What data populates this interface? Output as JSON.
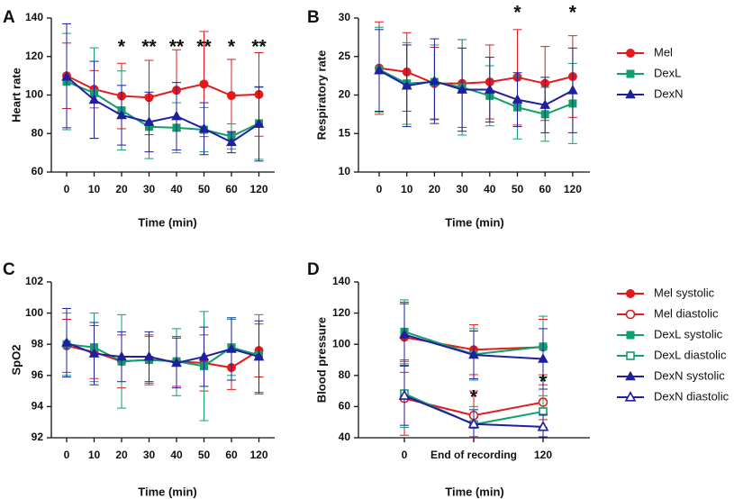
{
  "colors": {
    "Mel": "#e31a1c",
    "DexL": "#109e6b",
    "DexN": "#1f1fa0"
  },
  "legends": {
    "top": [
      "Mel",
      "DexL",
      "DexN"
    ],
    "bottom": [
      "Mel systolic",
      "Mel diastolic",
      "DexL systolic",
      "DexL diastolic",
      "DexN systolic",
      "DexN diastolic"
    ]
  },
  "chart_data": [
    {
      "panel": "A",
      "type": "line",
      "xlabel": "Time (min)",
      "ylabel": "Heart rate",
      "categories": [
        "0",
        "10",
        "20",
        "30",
        "40",
        "50",
        "60",
        "120"
      ],
      "ylim": [
        60,
        140
      ],
      "yticks": [
        60,
        80,
        100,
        120,
        140
      ],
      "series": [
        {
          "name": "Mel",
          "marker": "circle",
          "values": [
            110,
            103,
            99.5,
            98.7,
            102.5,
            105.7,
            99.7,
            100.3
          ],
          "upper": [
            127,
            112.7,
            116.5,
            118,
            123.5,
            133,
            118.5,
            122
          ],
          "lower": [
            93,
            93.3,
            82.5,
            79.4,
            81.5,
            78.4,
            80.9,
            78.6
          ]
        },
        {
          "name": "DexL",
          "marker": "square",
          "values": [
            107,
            101,
            92,
            83.5,
            83,
            82,
            78.5,
            85.3
          ],
          "upper": [
            132,
            124.5,
            112.5,
            100,
            96,
            93.5,
            85,
            104
          ],
          "lower": [
            82,
            77.5,
            71.5,
            67,
            70,
            70.5,
            72,
            66.6
          ]
        },
        {
          "name": "DexN",
          "marker": "triangle",
          "values": [
            109.5,
            97.5,
            89.5,
            86,
            89,
            82.5,
            75.5,
            85
          ],
          "upper": [
            137,
            117.5,
            105,
            101.5,
            106.5,
            96,
            81,
            104.3
          ],
          "lower": [
            83,
            77.5,
            74,
            70.5,
            71.5,
            69,
            70,
            65.7
          ]
        }
      ],
      "annotations": [
        {
          "label": "*",
          "category": "20"
        },
        {
          "label": "**",
          "category": "30"
        },
        {
          "label": "**",
          "category": "40"
        },
        {
          "label": "**",
          "category": "50"
        },
        {
          "label": "*",
          "category": "60"
        },
        {
          "label": "**",
          "category": "120"
        }
      ]
    },
    {
      "panel": "B",
      "type": "line",
      "xlabel": "Time (min)",
      "ylabel": "Respiratory rate",
      "categories": [
        "0",
        "10",
        "20",
        "30",
        "40",
        "50",
        "60",
        "120"
      ],
      "ylim": [
        10,
        30
      ],
      "yticks": [
        10,
        15,
        20,
        25,
        30
      ],
      "series": [
        {
          "name": "Mel",
          "marker": "circle",
          "values": [
            23.5,
            23,
            21.5,
            21.5,
            21.7,
            22.3,
            21.5,
            22.4
          ],
          "upper": [
            29.5,
            28.1,
            26.2,
            27.2,
            26.5,
            28.5,
            26.3,
            27.7
          ],
          "lower": [
            17.5,
            17.9,
            16.8,
            15.8,
            16.9,
            16.1,
            16.7,
            17.1
          ]
        },
        {
          "name": "DexL",
          "marker": "square",
          "values": [
            23.3,
            21.5,
            21.7,
            21,
            19.9,
            18.4,
            17.5,
            18.9
          ],
          "upper": [
            28.8,
            26.8,
            26.5,
            27.2,
            23.8,
            22.5,
            21,
            24.1
          ],
          "lower": [
            17.8,
            16.2,
            16.9,
            14.8,
            16,
            14.3,
            14,
            13.7
          ]
        },
        {
          "name": "DexN",
          "marker": "triangle",
          "values": [
            23.2,
            21.2,
            21.8,
            20.7,
            20.7,
            19.4,
            18.7,
            20.6
          ],
          "upper": [
            28.5,
            26.5,
            27.3,
            26.1,
            24.9,
            22.9,
            22.3,
            26.1
          ],
          "lower": [
            17.9,
            15.9,
            16.3,
            15.3,
            16.5,
            15.9,
            15.1,
            15.1
          ]
        }
      ],
      "annotations": [
        {
          "label": "*",
          "category": "50"
        },
        {
          "label": "*",
          "category": "120"
        }
      ]
    },
    {
      "panel": "C",
      "type": "line",
      "xlabel": "Time (min)",
      "ylabel": "SpO2",
      "categories": [
        "0",
        "10",
        "20",
        "30",
        "40",
        "50",
        "60",
        "120"
      ],
      "ylim": [
        92,
        102
      ],
      "yticks": [
        92,
        94,
        96,
        98,
        100,
        102
      ],
      "series": [
        {
          "name": "Mel",
          "marker": "circle",
          "values": [
            97.9,
            97.5,
            96.9,
            97,
            96.9,
            96.8,
            96.5,
            97.6
          ],
          "upper": [
            99.6,
            99.2,
            98.6,
            98.6,
            98.5,
            98.6,
            97.9,
            99.3
          ],
          "lower": [
            96.2,
            95.8,
            95.2,
            95.4,
            95.3,
            95,
            95.1,
            95.9
          ]
        },
        {
          "name": "DexL",
          "marker": "square",
          "values": [
            98,
            97.8,
            96.9,
            97,
            96.9,
            96.6,
            97.8,
            97.3
          ],
          "upper": [
            100,
            100,
            99.9,
            98.5,
            99,
            100.1,
            99.6,
            99.9
          ],
          "lower": [
            96,
            95.6,
            93.9,
            95.5,
            94.7,
            93.1,
            96,
            94.8
          ]
        },
        {
          "name": "DexN",
          "marker": "triangle",
          "values": [
            98.1,
            97.4,
            97.2,
            97.2,
            96.8,
            97.2,
            97.7,
            97.2
          ],
          "upper": [
            100.3,
            99.4,
            98.8,
            98.8,
            98.4,
            99.1,
            99.7,
            99.5
          ],
          "lower": [
            95.9,
            95.4,
            95.6,
            95.6,
            95.2,
            95.3,
            95.7,
            94.9
          ]
        }
      ]
    },
    {
      "panel": "D",
      "type": "line",
      "xlabel": "Time (min)",
      "ylabel": "Blood pressure",
      "categories": [
        "0",
        "End of recording",
        "120"
      ],
      "ylim": [
        40,
        140
      ],
      "yticks": [
        40,
        60,
        80,
        100,
        120,
        140
      ],
      "series": [
        {
          "name": "Mel systolic",
          "marker": "circle",
          "values": [
            104.5,
            96.5,
            98.2
          ],
          "upper": [
            127,
            112.5,
            116
          ],
          "lower": [
            82,
            80.5,
            80.4
          ]
        },
        {
          "name": "Mel diastolic",
          "marker": "circle-open",
          "values": [
            65.3,
            54.3,
            62.8
          ],
          "upper": [
            89,
            70,
            74
          ],
          "lower": [
            41.6,
            40.1,
            51.6
          ]
        },
        {
          "name": "DexL systolic",
          "marker": "square",
          "values": [
            108,
            93.5,
            98.5
          ],
          "upper": [
            128.5,
            110,
            118
          ],
          "lower": [
            87.5,
            77,
            79
          ]
        },
        {
          "name": "DexL diastolic",
          "marker": "square-open",
          "values": [
            68.3,
            48.5,
            56.8
          ],
          "upper": [
            90,
            60,
            67
          ],
          "lower": [
            46.6,
            40.5,
            46.6
          ]
        },
        {
          "name": "DexN systolic",
          "marker": "triangle",
          "values": [
            106.2,
            93.2,
            90.6
          ],
          "upper": [
            126,
            108.5,
            110
          ],
          "lower": [
            86.4,
            77.9,
            71.2
          ]
        },
        {
          "name": "DexN diastolic",
          "marker": "triangle-open",
          "values": [
            67,
            48.8,
            47
          ],
          "upper": [
            86,
            58,
            55
          ],
          "lower": [
            48,
            40.6,
            40.6
          ]
        }
      ],
      "annotations": [
        {
          "label": "*",
          "category": "End of recording"
        },
        {
          "label": "*",
          "category": "120"
        }
      ]
    }
  ]
}
